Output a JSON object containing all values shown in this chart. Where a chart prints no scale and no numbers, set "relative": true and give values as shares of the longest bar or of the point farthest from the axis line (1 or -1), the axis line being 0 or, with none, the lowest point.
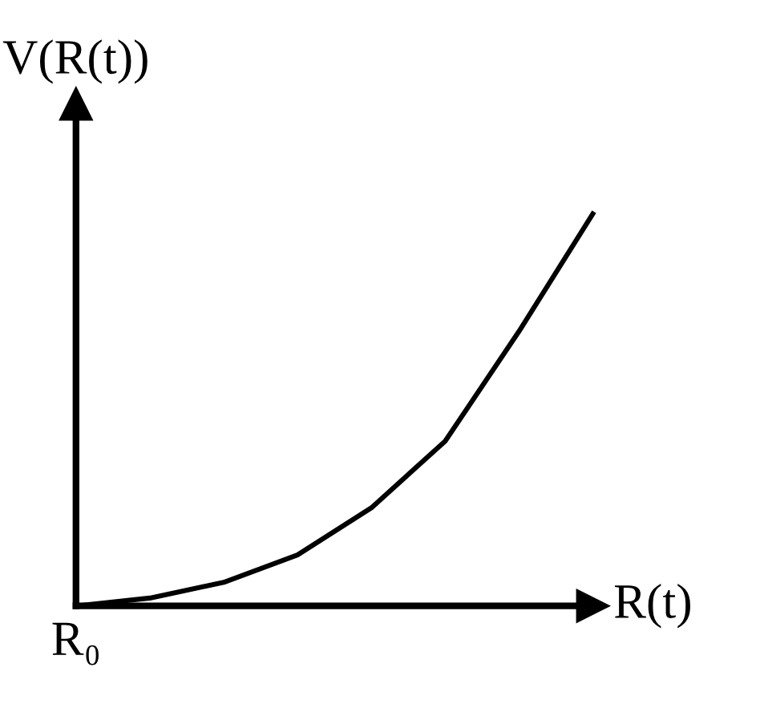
{
  "chart_data": {
    "type": "line",
    "relative": true,
    "xlabel": "R(t)",
    "ylabel": "V(R(t))",
    "annotations": [
      "R₀"
    ],
    "categories": [
      null,
      null,
      null,
      null,
      null,
      null,
      null,
      null
    ],
    "series": [
      {
        "color": "#000000",
        "values": [
          0,
          0.02,
          0.06,
          0.13,
          0.25,
          0.42,
          0.7,
          1.0
        ]
      }
    ],
    "marker": "none",
    "line_style": "solid",
    "legend": false
  }
}
